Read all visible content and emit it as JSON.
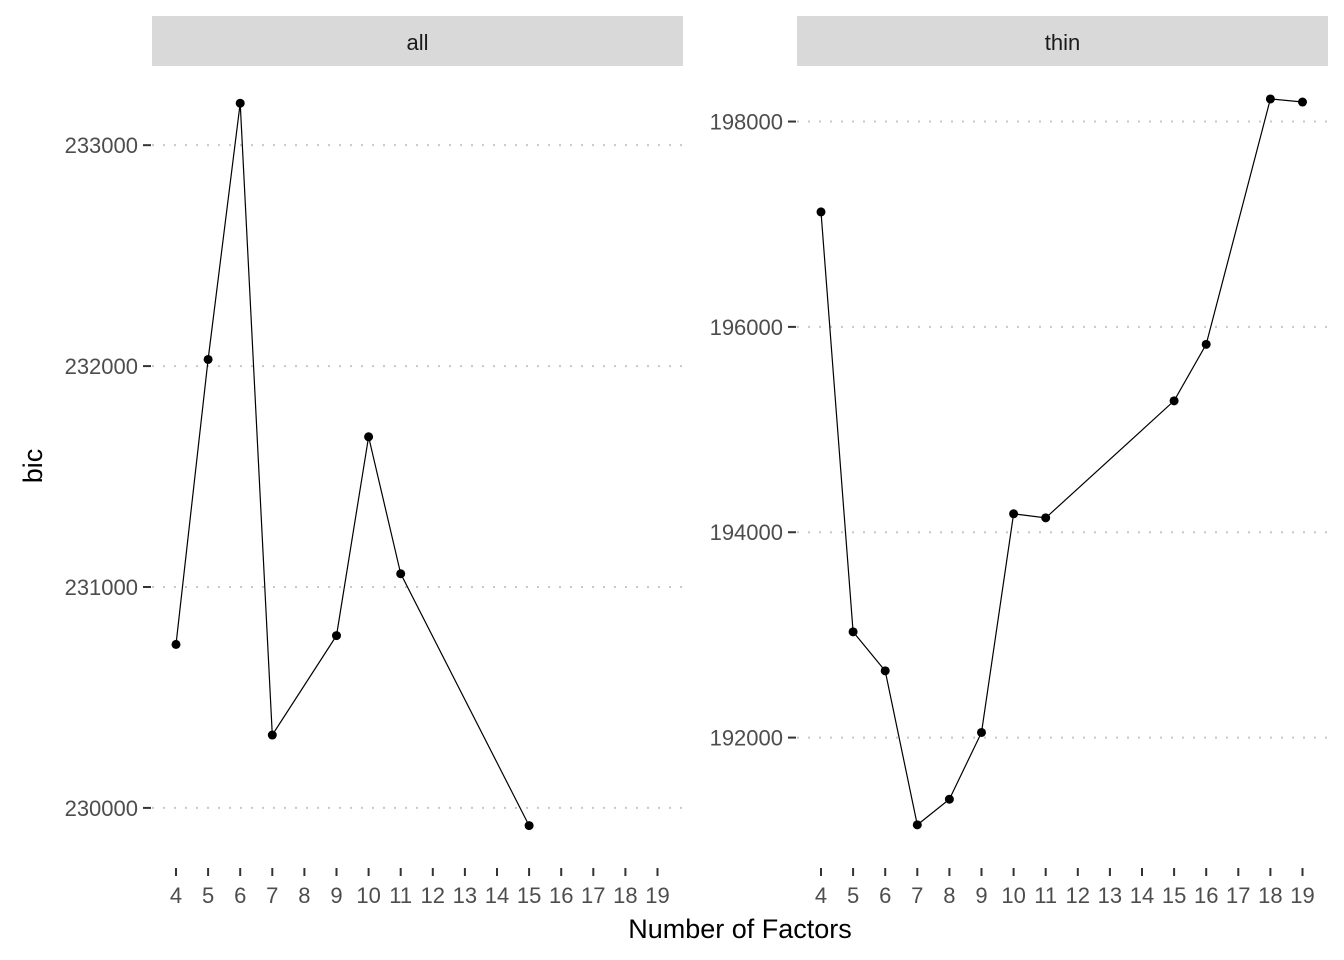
{
  "chart_data": {
    "type": "line",
    "xlabel": "Number of Factors",
    "ylabel": "bic",
    "grid": "dotted horizontal major gridlines",
    "colors": {
      "line": "#000000",
      "strip": "#d9d9d9",
      "grid": "#c8c8c8",
      "tick_text": "#4d4d4d"
    },
    "x_ticks": [
      4,
      5,
      6,
      7,
      8,
      9,
      10,
      11,
      12,
      13,
      14,
      15,
      16,
      17,
      18,
      19
    ],
    "panels": [
      {
        "label": "all",
        "ylim": [
          229900,
          233200
        ],
        "y_ticks": [
          230000,
          231000,
          232000,
          233000
        ],
        "x": [
          4,
          5,
          6,
          7,
          9,
          10,
          11,
          15
        ],
        "y": [
          230740,
          232030,
          233190,
          230330,
          230780,
          231680,
          231060,
          229920
        ]
      },
      {
        "label": "thin",
        "ylim": [
          191100,
          198200
        ],
        "y_ticks": [
          192000,
          194000,
          196000,
          198000
        ],
        "x": [
          4,
          5,
          6,
          7,
          8,
          9,
          10,
          11,
          15,
          16,
          18,
          19
        ],
        "y": [
          197120,
          193030,
          192650,
          191150,
          191400,
          192050,
          194180,
          194140,
          195280,
          195830,
          198220,
          198190
        ]
      }
    ]
  }
}
